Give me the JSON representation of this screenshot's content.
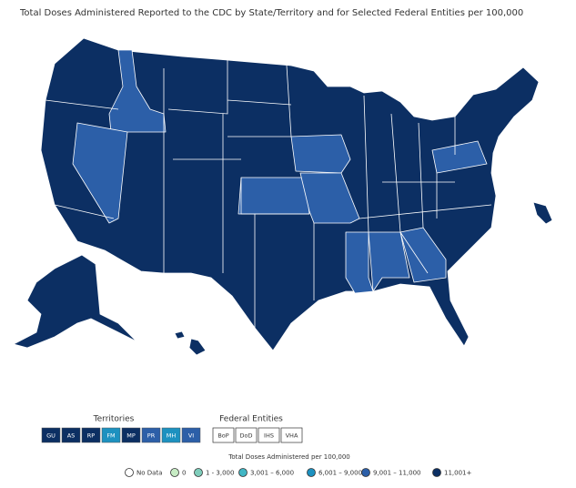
{
  "title": "Total Doses Administered Reported to the CDC by State/Territory and for Selected Federal Entities per 100,000",
  "territories": {
    "title": "Territories",
    "items": [
      {
        "label": "GU",
        "color": "#0c2f63"
      },
      {
        "label": "AS",
        "color": "#0c2f63"
      },
      {
        "label": "RP",
        "color": "#0c2f63"
      },
      {
        "label": "FM",
        "color": "#1d91c0"
      },
      {
        "label": "MP",
        "color": "#0c2f63"
      },
      {
        "label": "PR",
        "color": "#2c5fa8"
      },
      {
        "label": "MH",
        "color": "#1d91c0"
      },
      {
        "label": "VI",
        "color": "#2c5fa8"
      }
    ]
  },
  "federal": {
    "title": "Federal Entities",
    "items": [
      {
        "label": "BoP"
      },
      {
        "label": "DoD"
      },
      {
        "label": "IHS"
      },
      {
        "label": "VHA"
      }
    ]
  },
  "legend": {
    "title": "Total Doses Administered per 100,000",
    "items": [
      {
        "label": "No Data",
        "color": "#ffffff"
      },
      {
        "label": "0",
        "color": "#c7ecc4"
      },
      {
        "label": "1 - 3,000",
        "color": "#7fcdbb"
      },
      {
        "label": "3,001 – 6,000",
        "color": "#41b6c4"
      },
      {
        "label": "6,001 – 9,000",
        "color": "#1d91c0"
      },
      {
        "label": "9,001 – 11,000",
        "color": "#2c5fa8"
      },
      {
        "label": "11,001+",
        "color": "#0c2f63"
      }
    ]
  }
}
